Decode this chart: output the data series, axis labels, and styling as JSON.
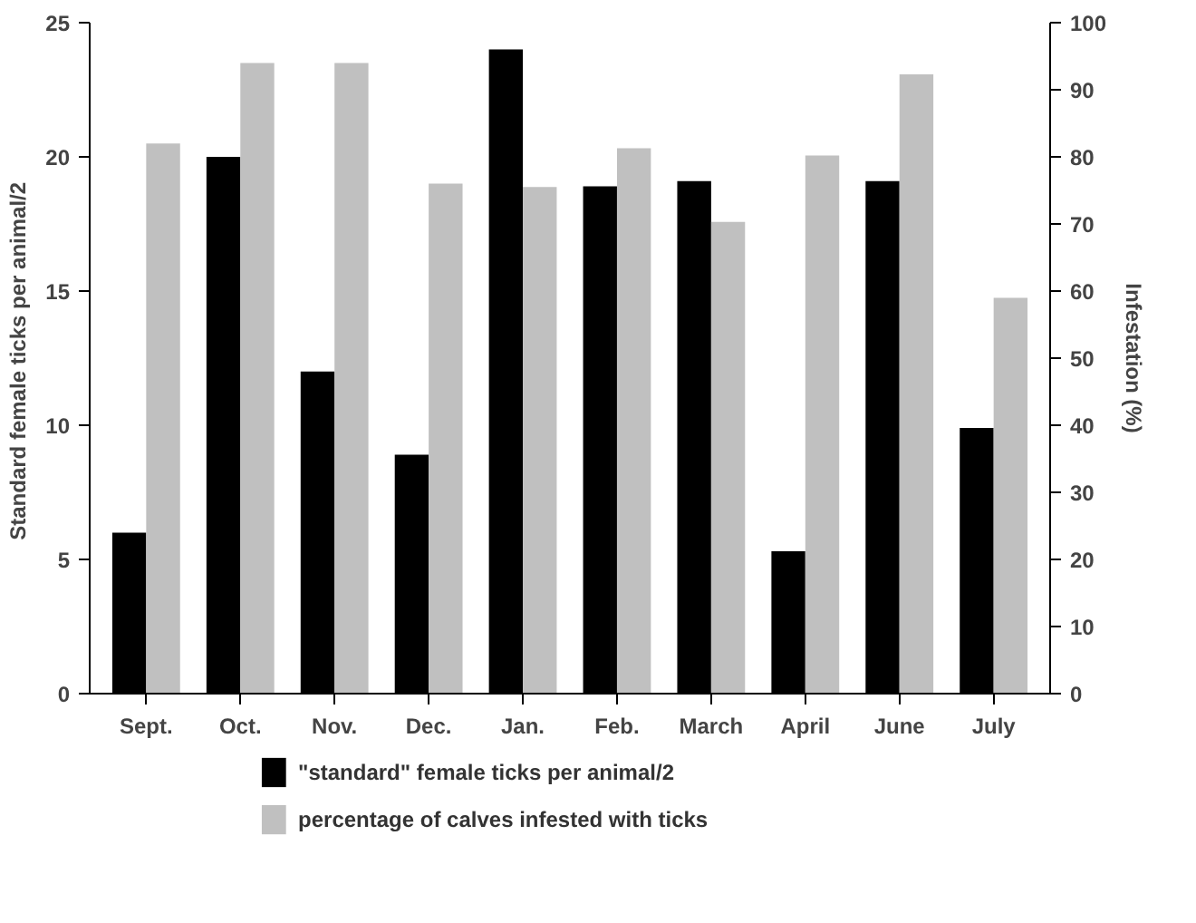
{
  "chart_data": {
    "type": "bar",
    "categories": [
      "Sept.",
      "Oct.",
      "Nov.",
      "Dec.",
      "Jan.",
      "Feb.",
      "March",
      "April",
      "June",
      "July"
    ],
    "ylabel": "Standard  female ticks per animal/2",
    "y2label": "Infestation (%)",
    "ylim": [
      0,
      25
    ],
    "yticks": [
      0,
      5,
      10,
      15,
      20,
      25
    ],
    "y2lim": [
      0,
      100
    ],
    "y2ticks": [
      0,
      10,
      20,
      30,
      40,
      50,
      60,
      70,
      80,
      90,
      100
    ],
    "series": [
      {
        "name": "\"standard\" female ticks per animal/2",
        "color": "#000000",
        "values": [
          6,
          20,
          12,
          8.9,
          24,
          18.9,
          19.1,
          5.3,
          19.1,
          9.9
        ]
      },
      {
        "name": "percentage of calves infested with ticks",
        "color": "#c0c0c0",
        "axis": "y2",
        "values": [
          82,
          94,
          94,
          76,
          75.5,
          81.3,
          70.3,
          80.2,
          92.3,
          59
        ]
      }
    ],
    "grid": false,
    "legend": "bottom"
  }
}
